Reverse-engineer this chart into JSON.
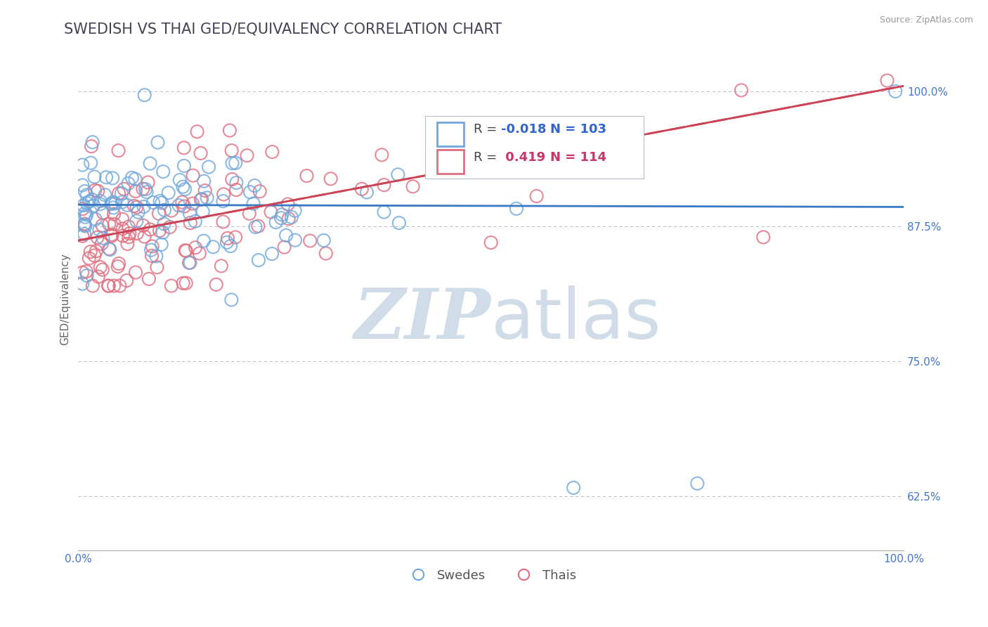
{
  "title": "SWEDISH VS THAI GED/EQUIVALENCY CORRELATION CHART",
  "source_text": "Source: ZipAtlas.com",
  "ylabel": "GED/Equivalency",
  "xlim": [
    0.0,
    1.0
  ],
  "ylim": [
    0.575,
    1.04
  ],
  "yticks": [
    0.625,
    0.75,
    0.875,
    1.0
  ],
  "ytick_labels": [
    "62.5%",
    "75.0%",
    "87.5%",
    "100.0%"
  ],
  "xticks": [
    0.0,
    1.0
  ],
  "xtick_labels": [
    "0.0%",
    "100.0%"
  ],
  "swedes_color": "#6fa8dc",
  "thais_color": "#e06c7e",
  "swedes_line_color": "#3b78c4",
  "thais_line_color": "#cc4455",
  "R_swedes": -0.018,
  "N_swedes": 103,
  "R_thais": 0.419,
  "N_thais": 114,
  "watermark_zip": "ZIP",
  "watermark_atlas": "atlas",
  "watermark_color": "#d0dde8",
  "title_fontsize": 15,
  "label_fontsize": 11,
  "tick_fontsize": 11,
  "legend_fontsize": 13,
  "background_color": "#ffffff",
  "grid_color": "#aabbcc",
  "blue_line_y0": 0.895,
  "blue_line_y1": 0.893,
  "red_line_y0": 0.862,
  "red_line_y1": 1.005
}
